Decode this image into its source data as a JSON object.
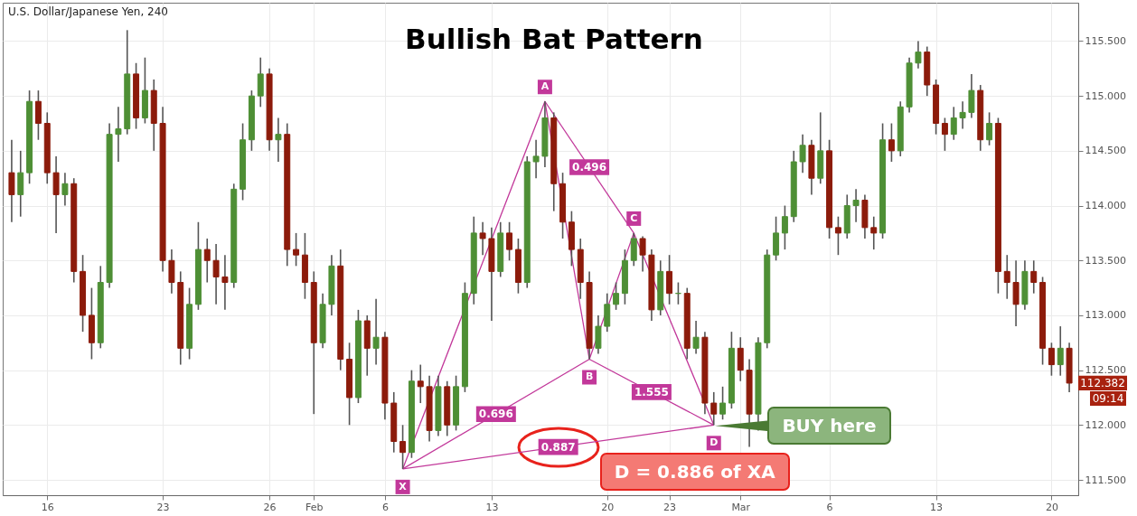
{
  "chart_data": {
    "type": "candlestick",
    "title": "Bullish Bat Pattern",
    "subtitle": "U.S. Dollar/Japanese Yen, 240",
    "categories": [
      null,
      null,
      null,
      null,
      "16",
      null,
      null,
      null,
      null,
      null,
      null,
      null,
      null,
      null,
      null,
      null,
      null,
      "23",
      null,
      null,
      null,
      null,
      null,
      null,
      null,
      null,
      null,
      null,
      null,
      "26",
      null,
      null,
      null,
      null,
      "Feb",
      null,
      null,
      null,
      null,
      null,
      null,
      null,
      "6",
      null,
      null,
      null,
      null,
      null,
      null,
      null,
      null,
      null,
      null,
      null,
      "13",
      null,
      null,
      null,
      null,
      null,
      null,
      null,
      null,
      null,
      null,
      null,
      null,
      "20",
      null,
      null,
      null,
      null,
      null,
      null,
      "23",
      null,
      null,
      null,
      null,
      null,
      null,
      null,
      "Mar",
      null,
      null,
      null,
      null,
      null,
      null,
      null,
      null,
      null,
      "6",
      null,
      null,
      null,
      null,
      null,
      null,
      null,
      null,
      null,
      null,
      null,
      "13",
      null,
      null,
      null,
      null,
      null,
      null,
      null,
      null,
      null,
      null,
      null,
      null,
      "20",
      null,
      null
    ],
    "ohlc": [
      [
        114.3,
        114.6,
        113.85,
        114.1
      ],
      [
        114.1,
        114.5,
        113.9,
        114.3
      ],
      [
        114.3,
        115.05,
        114.2,
        114.95
      ],
      [
        114.95,
        115.05,
        114.6,
        114.75
      ],
      [
        114.75,
        114.85,
        114.2,
        114.3
      ],
      [
        114.3,
        114.45,
        113.75,
        114.1
      ],
      [
        114.1,
        114.3,
        114.0,
        114.2
      ],
      [
        114.2,
        114.25,
        113.3,
        113.4
      ],
      [
        113.4,
        113.55,
        112.85,
        113.0
      ],
      [
        113.0,
        113.25,
        112.6,
        112.75
      ],
      [
        112.75,
        113.45,
        112.7,
        113.3
      ],
      [
        113.3,
        114.75,
        113.25,
        114.65
      ],
      [
        114.65,
        114.9,
        114.4,
        114.7
      ],
      [
        114.7,
        115.6,
        114.65,
        115.2
      ],
      [
        115.2,
        115.3,
        114.7,
        114.8
      ],
      [
        114.8,
        115.35,
        114.75,
        115.05
      ],
      [
        115.05,
        115.15,
        114.5,
        114.75
      ],
      [
        114.75,
        114.9,
        113.4,
        113.5
      ],
      [
        113.5,
        113.6,
        113.2,
        113.3
      ],
      [
        113.3,
        113.4,
        112.55,
        112.7
      ],
      [
        112.7,
        113.25,
        112.6,
        113.1
      ],
      [
        113.1,
        113.85,
        113.05,
        113.6
      ],
      [
        113.6,
        113.7,
        113.3,
        113.5
      ],
      [
        113.5,
        113.65,
        113.1,
        113.35
      ],
      [
        113.35,
        113.55,
        113.05,
        113.3
      ],
      [
        113.3,
        114.2,
        113.25,
        114.15
      ],
      [
        114.15,
        114.75,
        114.05,
        114.6
      ],
      [
        114.6,
        115.05,
        114.5,
        115.0
      ],
      [
        115.0,
        115.35,
        114.9,
        115.2
      ],
      [
        115.2,
        115.25,
        114.5,
        114.6
      ],
      [
        114.6,
        114.8,
        114.4,
        114.65
      ],
      [
        114.65,
        114.75,
        113.45,
        113.6
      ],
      [
        113.6,
        113.75,
        113.45,
        113.55
      ],
      [
        113.55,
        113.75,
        113.15,
        113.3
      ],
      [
        113.3,
        113.4,
        112.1,
        112.75
      ],
      [
        112.75,
        113.2,
        112.7,
        113.1
      ],
      [
        113.1,
        113.55,
        113.0,
        113.45
      ],
      [
        113.45,
        113.6,
        112.5,
        112.6
      ],
      [
        112.6,
        112.75,
        112.0,
        112.25
      ],
      [
        112.25,
        113.05,
        112.2,
        112.95
      ],
      [
        112.95,
        113.0,
        112.45,
        112.7
      ],
      [
        112.7,
        113.15,
        112.55,
        112.8
      ],
      [
        112.8,
        112.85,
        112.05,
        112.2
      ],
      [
        112.2,
        112.3,
        111.75,
        111.85
      ],
      [
        111.85,
        112.0,
        111.6,
        111.75
      ],
      [
        111.75,
        112.5,
        111.7,
        112.4
      ],
      [
        112.4,
        112.55,
        112.2,
        112.35
      ],
      [
        112.35,
        112.45,
        111.85,
        111.95
      ],
      [
        111.95,
        112.45,
        111.9,
        112.35
      ],
      [
        112.35,
        112.4,
        111.9,
        112.0
      ],
      [
        112.0,
        112.45,
        111.95,
        112.35
      ],
      [
        112.35,
        113.3,
        112.3,
        113.2
      ],
      [
        113.2,
        113.9,
        113.1,
        113.75
      ],
      [
        113.75,
        113.85,
        113.55,
        113.7
      ],
      [
        113.7,
        113.8,
        112.95,
        113.4
      ],
      [
        113.4,
        113.85,
        113.35,
        113.75
      ],
      [
        113.75,
        113.85,
        113.5,
        113.6
      ],
      [
        113.6,
        113.7,
        113.2,
        113.3
      ],
      [
        113.3,
        114.45,
        113.25,
        114.4
      ],
      [
        114.4,
        114.6,
        114.25,
        114.45
      ],
      [
        114.45,
        114.95,
        114.35,
        114.8
      ],
      [
        114.8,
        114.85,
        113.95,
        114.2
      ],
      [
        114.2,
        114.3,
        113.7,
        113.85
      ],
      [
        113.85,
        113.95,
        113.45,
        113.6
      ],
      [
        113.6,
        113.7,
        113.15,
        113.3
      ],
      [
        113.3,
        113.4,
        112.6,
        112.7
      ],
      [
        112.7,
        113.0,
        112.65,
        112.9
      ],
      [
        112.9,
        113.2,
        112.85,
        113.1
      ],
      [
        113.1,
        113.3,
        113.05,
        113.2
      ],
      [
        113.2,
        113.6,
        113.1,
        113.5
      ],
      [
        113.5,
        113.75,
        113.45,
        113.7
      ],
      [
        113.7,
        113.72,
        113.4,
        113.55
      ],
      [
        113.55,
        113.6,
        112.95,
        113.05
      ],
      [
        113.05,
        113.5,
        113.0,
        113.4
      ],
      [
        113.4,
        113.55,
        113.1,
        113.2
      ],
      [
        113.2,
        113.3,
        113.1,
        113.2
      ],
      [
        113.2,
        113.25,
        112.6,
        112.7
      ],
      [
        112.7,
        112.95,
        112.65,
        112.8
      ],
      [
        112.8,
        112.85,
        112.1,
        112.2
      ],
      [
        112.2,
        112.3,
        112.0,
        112.1
      ],
      [
        112.1,
        112.35,
        112.05,
        112.2
      ],
      [
        112.2,
        112.85,
        112.15,
        112.7
      ],
      [
        112.7,
        112.8,
        112.4,
        112.5
      ],
      [
        112.5,
        112.6,
        111.8,
        112.1
      ],
      [
        112.1,
        112.8,
        111.95,
        112.75
      ],
      [
        112.75,
        113.6,
        112.7,
        113.55
      ],
      [
        113.55,
        113.9,
        113.5,
        113.75
      ],
      [
        113.75,
        114.0,
        113.6,
        113.9
      ],
      [
        113.9,
        114.5,
        113.85,
        114.4
      ],
      [
        114.4,
        114.65,
        114.3,
        114.55
      ],
      [
        114.55,
        114.6,
        114.1,
        114.25
      ],
      [
        114.25,
        114.85,
        114.2,
        114.5
      ],
      [
        114.5,
        114.6,
        113.7,
        113.8
      ],
      [
        113.8,
        113.9,
        113.55,
        113.75
      ],
      [
        113.75,
        114.1,
        113.7,
        114.0
      ],
      [
        114.0,
        114.15,
        113.85,
        114.05
      ],
      [
        114.05,
        114.1,
        113.7,
        113.8
      ],
      [
        113.8,
        113.9,
        113.6,
        113.75
      ],
      [
        113.75,
        114.75,
        113.7,
        114.6
      ],
      [
        114.6,
        114.75,
        114.4,
        114.5
      ],
      [
        114.5,
        114.95,
        114.45,
        114.9
      ],
      [
        114.9,
        115.35,
        114.85,
        115.3
      ],
      [
        115.3,
        115.5,
        115.25,
        115.4
      ],
      [
        115.4,
        115.45,
        115.0,
        115.1
      ],
      [
        115.1,
        115.15,
        114.65,
        114.75
      ],
      [
        114.75,
        114.8,
        114.5,
        114.65
      ],
      [
        114.65,
        114.9,
        114.6,
        114.8
      ],
      [
        114.8,
        114.95,
        114.7,
        114.85
      ],
      [
        114.85,
        115.2,
        114.8,
        115.05
      ],
      [
        115.05,
        115.1,
        114.5,
        114.6
      ],
      [
        114.6,
        114.85,
        114.55,
        114.75
      ],
      [
        114.75,
        114.8,
        113.2,
        113.4
      ],
      [
        113.4,
        113.55,
        113.15,
        113.3
      ],
      [
        113.3,
        113.5,
        112.9,
        113.1
      ],
      [
        113.1,
        113.5,
        113.05,
        113.4
      ],
      [
        113.4,
        113.5,
        113.2,
        113.3
      ],
      [
        113.3,
        113.35,
        112.55,
        112.7
      ],
      [
        112.7,
        112.75,
        112.45,
        112.55
      ],
      [
        112.55,
        112.9,
        112.45,
        112.7
      ],
      [
        112.7,
        112.75,
        112.3,
        112.382
      ]
    ],
    "colors": [
      "#8c1b0b",
      "#4e8f35",
      "#4e8f35",
      "#8c1b0b",
      "#8c1b0b",
      "#8c1b0b",
      "#4e8f35",
      "#8c1b0b",
      "#8c1b0b",
      "#8c1b0b",
      "#4e8f35",
      "#4e8f35",
      "#4e8f35",
      "#4e8f35",
      "#8c1b0b",
      "#4e8f35",
      "#8c1b0b",
      "#8c1b0b",
      "#8c1b0b",
      "#8c1b0b",
      "#4e8f35",
      "#4e8f35",
      "#8c1b0b",
      "#8c1b0b",
      "#8c1b0b",
      "#4e8f35",
      "#4e8f35",
      "#4e8f35",
      "#4e8f35",
      "#8c1b0b",
      "#4e8f35",
      "#8c1b0b",
      "#8c1b0b",
      "#8c1b0b",
      "#8c1b0b",
      "#4e8f35",
      "#4e8f35",
      "#8c1b0b",
      "#8c1b0b",
      "#4e8f35",
      "#8c1b0b",
      "#4e8f35",
      "#8c1b0b",
      "#8c1b0b",
      "#8c1b0b",
      "#4e8f35",
      "#8c1b0b",
      "#8c1b0b",
      "#4e8f35",
      "#8c1b0b",
      "#4e8f35",
      "#4e8f35",
      "#4e8f35",
      "#8c1b0b",
      "#8c1b0b",
      "#4e8f35",
      "#8c1b0b",
      "#8c1b0b",
      "#4e8f35",
      "#4e8f35",
      "#4e8f35",
      "#8c1b0b",
      "#8c1b0b",
      "#8c1b0b",
      "#8c1b0b",
      "#8c1b0b",
      "#4e8f35",
      "#4e8f35",
      "#4e8f35",
      "#4e8f35",
      "#4e8f35",
      "#8c1b0b",
      "#8c1b0b",
      "#4e8f35",
      "#8c1b0b",
      "#4e8f35",
      "#8c1b0b",
      "#4e8f35",
      "#8c1b0b",
      "#8c1b0b",
      "#4e8f35",
      "#4e8f35",
      "#8c1b0b",
      "#8c1b0b",
      "#4e8f35",
      "#4e8f35",
      "#4e8f35",
      "#4e8f35",
      "#4e8f35",
      "#4e8f35",
      "#8c1b0b",
      "#4e8f35",
      "#8c1b0b",
      "#8c1b0b",
      "#4e8f35",
      "#4e8f35",
      "#8c1b0b",
      "#8c1b0b",
      "#4e8f35",
      "#8c1b0b",
      "#4e8f35",
      "#4e8f35",
      "#4e8f35",
      "#8c1b0b",
      "#8c1b0b",
      "#8c1b0b",
      "#4e8f35",
      "#4e8f35",
      "#4e8f35",
      "#8c1b0b",
      "#4e8f35",
      "#8c1b0b",
      "#8c1b0b",
      "#8c1b0b",
      "#4e8f35",
      "#8c1b0b",
      "#8c1b0b",
      "#8c1b0b",
      "#4e8f35",
      "#8c1b0b"
    ],
    "series": [
      {
        "type": "line",
        "color": "#c2389a",
        "values": [
          null,
          null,
          null,
          null,
          null,
          null,
          null,
          null,
          null,
          null,
          null,
          null,
          null,
          null,
          null,
          null,
          null,
          null,
          null,
          null,
          null,
          null,
          null,
          null,
          null,
          null,
          null,
          null,
          null,
          null,
          null,
          null,
          null,
          null,
          null,
          null,
          null,
          null,
          null,
          null,
          null,
          null,
          null,
          null,
          111.6,
          null,
          null,
          null,
          null,
          null,
          null,
          null,
          null,
          null,
          null,
          null,
          null,
          null,
          null,
          null,
          114.95,
          null,
          null,
          null,
          null,
          112.6,
          null,
          null,
          null,
          null,
          113.75,
          null,
          null,
          null,
          null,
          null,
          null,
          null,
          null,
          112.0,
          null,
          null,
          null,
          null,
          null,
          null,
          null,
          null,
          null,
          null,
          null,
          null,
          null,
          null,
          null,
          null,
          null,
          null,
          null,
          null,
          null,
          null,
          null,
          null,
          null,
          null,
          null,
          null,
          null,
          null,
          null,
          null,
          null,
          null,
          null,
          null,
          null,
          null,
          null,
          null
        ]
      },
      {
        "type": "line",
        "name": "0.696",
        "color": "#c2389a",
        "values": [
          null,
          null,
          null,
          null,
          null,
          null,
          null,
          null,
          null,
          null,
          null,
          null,
          null,
          null,
          null,
          null,
          null,
          null,
          null,
          null,
          null,
          null,
          null,
          null,
          null,
          null,
          null,
          null,
          null,
          null,
          null,
          null,
          null,
          null,
          null,
          null,
          null,
          null,
          null,
          null,
          null,
          null,
          null,
          null,
          111.6,
          null,
          null,
          null,
          null,
          null,
          null,
          null,
          null,
          null,
          null,
          null,
          null,
          null,
          null,
          null,
          null,
          null,
          null,
          null,
          null,
          112.6,
          null,
          null,
          null,
          null,
          null,
          null,
          null,
          null,
          null,
          null,
          null,
          null,
          null,
          null,
          null,
          null,
          null,
          null,
          null,
          null,
          null,
          null,
          null,
          null,
          null,
          null,
          null,
          null,
          null,
          null,
          null,
          null,
          null,
          null,
          null,
          null,
          null,
          null,
          null,
          null,
          null,
          null,
          null,
          null,
          null,
          null,
          null,
          null,
          null,
          null,
          null,
          null,
          null,
          null
        ]
      },
      {
        "type": "line",
        "name": "0.496",
        "color": "#c2389a",
        "values": [
          null,
          null,
          null,
          null,
          null,
          null,
          null,
          null,
          null,
          null,
          null,
          null,
          null,
          null,
          null,
          null,
          null,
          null,
          null,
          null,
          null,
          null,
          null,
          null,
          null,
          null,
          null,
          null,
          null,
          null,
          null,
          null,
          null,
          null,
          null,
          null,
          null,
          null,
          null,
          null,
          null,
          null,
          null,
          null,
          null,
          null,
          null,
          null,
          null,
          null,
          null,
          null,
          null,
          null,
          null,
          null,
          null,
          null,
          null,
          null,
          114.95,
          null,
          null,
          null,
          null,
          null,
          null,
          null,
          null,
          null,
          113.75,
          null,
          null,
          null,
          null,
          null,
          null,
          null,
          null,
          null,
          null,
          null,
          null,
          null,
          null,
          null,
          null,
          null,
          null,
          null,
          null,
          null,
          null,
          null,
          null,
          null,
          null,
          null,
          null,
          null,
          null,
          null,
          null,
          null,
          null,
          null,
          null,
          null,
          null,
          null,
          null,
          null,
          null,
          null,
          null,
          null,
          null,
          null,
          null,
          null
        ]
      },
      {
        "type": "line",
        "name": "1.555",
        "color": "#c2389a",
        "values": [
          null,
          null,
          null,
          null,
          null,
          null,
          null,
          null,
          null,
          null,
          null,
          null,
          null,
          null,
          null,
          null,
          null,
          null,
          null,
          null,
          null,
          null,
          null,
          null,
          null,
          null,
          null,
          null,
          null,
          null,
          null,
          null,
          null,
          null,
          null,
          null,
          null,
          null,
          null,
          null,
          null,
          null,
          null,
          null,
          null,
          null,
          null,
          null,
          null,
          null,
          null,
          null,
          null,
          null,
          null,
          null,
          null,
          null,
          null,
          null,
          null,
          null,
          null,
          null,
          null,
          112.6,
          null,
          null,
          null,
          null,
          null,
          null,
          null,
          null,
          null,
          null,
          null,
          null,
          null,
          112.0,
          null,
          null,
          null,
          null,
          null,
          null,
          null,
          null,
          null,
          null,
          null,
          null,
          null,
          null,
          null,
          null,
          null,
          null,
          null,
          null,
          null,
          null,
          null,
          null,
          null,
          null,
          null,
          null,
          null,
          null,
          null,
          null,
          null,
          null,
          null,
          null,
          null,
          null,
          null,
          null
        ]
      },
      {
        "type": "line",
        "name": "0.887",
        "color": "#c2389a",
        "values": [
          null,
          null,
          null,
          null,
          null,
          null,
          null,
          null,
          null,
          null,
          null,
          null,
          null,
          null,
          null,
          null,
          null,
          null,
          null,
          null,
          null,
          null,
          null,
          null,
          null,
          null,
          null,
          null,
          null,
          null,
          null,
          null,
          null,
          null,
          null,
          null,
          null,
          null,
          null,
          null,
          null,
          null,
          null,
          null,
          111.6,
          null,
          null,
          null,
          null,
          null,
          null,
          null,
          null,
          null,
          null,
          null,
          null,
          null,
          null,
          null,
          null,
          null,
          null,
          null,
          null,
          null,
          null,
          null,
          null,
          null,
          null,
          null,
          null,
          null,
          null,
          null,
          null,
          null,
          null,
          112.0,
          null,
          null,
          null,
          null,
          null,
          null,
          null,
          null,
          null,
          null,
          null,
          null,
          null,
          null,
          null,
          null,
          null,
          null,
          null,
          null,
          null,
          null,
          null,
          null,
          null,
          null,
          null,
          null,
          null,
          null,
          null,
          null,
          null,
          null,
          null,
          null,
          null,
          null,
          null,
          null
        ]
      }
    ],
    "ylim": [
      111.36,
      115.85
    ],
    "yticks": [
      {
        "value": 111.5,
        "label": "111.500"
      },
      {
        "value": 112,
        "label": "112.000"
      },
      {
        "value": 112.5,
        "label": "112.500"
      },
      {
        "value": 113,
        "label": "113.000"
      },
      {
        "value": 113.5,
        "label": "113.500"
      },
      {
        "value": 114,
        "label": "114.000"
      },
      {
        "value": 114.5,
        "label": "114.500"
      },
      {
        "value": 115,
        "label": "115.000"
      },
      {
        "value": 115.5,
        "label": "115.500"
      }
    ],
    "grid": true,
    "annotations": [
      "X",
      "A",
      "B",
      "C",
      "D",
      "D = 0.886 of XA",
      "BUY here",
      "112.382",
      "09:14"
    ]
  }
}
